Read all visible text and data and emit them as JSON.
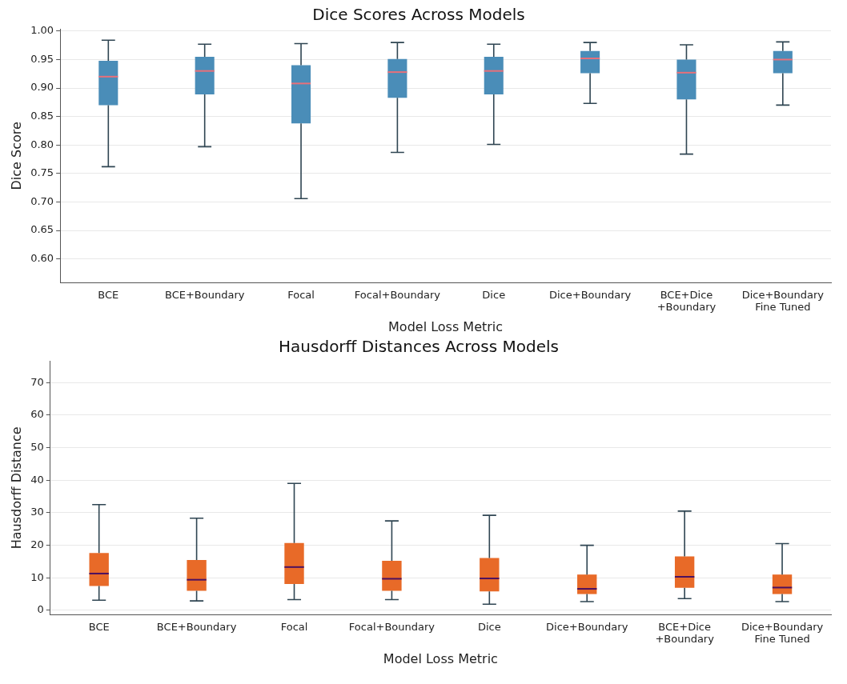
{
  "chart_data": [
    {
      "type": "box",
      "title": "Dice Scores Across Models",
      "xlabel": "Model Loss Metric",
      "ylabel": "Dice Score",
      "categories": [
        "BCE",
        "BCE+Boundary",
        "Focal",
        "Focal+Boundary",
        "Dice",
        "Dice+Boundary",
        "BCE+Dice\n+Boundary",
        "Dice+Boundary\nFine Tuned"
      ],
      "series": [
        {
          "color": "#4a8db8",
          "boxes": [
            {
              "low": 0.762,
              "q1": 0.87,
              "median": 0.92,
              "q3": 0.948,
              "high": 0.984
            },
            {
              "low": 0.797,
              "q1": 0.889,
              "median": 0.93,
              "q3": 0.955,
              "high": 0.977
            },
            {
              "low": 0.706,
              "q1": 0.838,
              "median": 0.908,
              "q3": 0.94,
              "high": 0.978
            },
            {
              "low": 0.787,
              "q1": 0.883,
              "median": 0.928,
              "q3": 0.951,
              "high": 0.98
            },
            {
              "low": 0.801,
              "q1": 0.889,
              "median": 0.93,
              "q3": 0.955,
              "high": 0.977
            },
            {
              "low": 0.873,
              "q1": 0.926,
              "median": 0.952,
              "q3": 0.965,
              "high": 0.98
            },
            {
              "low": 0.784,
              "q1": 0.88,
              "median": 0.927,
              "q3": 0.95,
              "high": 0.976
            },
            {
              "low": 0.87,
              "q1": 0.926,
              "median": 0.95,
              "q3": 0.965,
              "high": 0.981
            }
          ]
        }
      ],
      "ylim": [
        0.558,
        1.004
      ],
      "yticks": [
        {
          "value": 0.6,
          "label": "0.60"
        },
        {
          "value": 0.65,
          "label": "0.65"
        },
        {
          "value": 0.7,
          "label": "0.70"
        },
        {
          "value": 0.75,
          "label": "0.75"
        },
        {
          "value": 0.8,
          "label": "0.80"
        },
        {
          "value": 0.85,
          "label": "0.85"
        },
        {
          "value": 0.9,
          "label": "0.90"
        },
        {
          "value": 0.95,
          "label": "0.95"
        },
        {
          "value": 1.0,
          "label": "1.00"
        }
      ],
      "grid": "y",
      "legend": false
    },
    {
      "type": "box",
      "title": "Hausdorff Distances Across Models",
      "xlabel": "Model Loss Metric",
      "ylabel": "Hausdorff Distance",
      "categories": [
        "BCE",
        "BCE+Boundary",
        "Focal",
        "Focal+Boundary",
        "Dice",
        "Dice+Boundary",
        "BCE+Dice\n+Boundary",
        "Dice+Boundary\nFine Tuned"
      ],
      "series": [
        {
          "color": "#e86a28",
          "boxes": [
            {
              "low": 3.1,
              "q1": 7.5,
              "median": 11.3,
              "q3": 17.6,
              "high": 32.5
            },
            {
              "low": 2.9,
              "q1": 6.0,
              "median": 9.4,
              "q3": 15.5,
              "high": 28.3
            },
            {
              "low": 3.3,
              "q1": 8.1,
              "median": 13.3,
              "q3": 20.7,
              "high": 39.0
            },
            {
              "low": 3.3,
              "q1": 6.0,
              "median": 9.7,
              "q3": 15.2,
              "high": 27.5
            },
            {
              "low": 1.9,
              "q1": 5.8,
              "median": 9.8,
              "q3": 16.1,
              "high": 29.2
            },
            {
              "low": 2.7,
              "q1": 5.0,
              "median": 6.6,
              "q3": 11.0,
              "high": 20.0
            },
            {
              "low": 3.6,
              "q1": 6.9,
              "median": 10.3,
              "q3": 16.6,
              "high": 30.5
            },
            {
              "low": 2.7,
              "q1": 5.0,
              "median": 7.0,
              "q3": 11.0,
              "high": 20.5
            }
          ]
        }
      ],
      "ylim": [
        -1.4,
        76.7
      ],
      "yticks": [
        0,
        10,
        20,
        30,
        40,
        50,
        60,
        70
      ],
      "grid": "y",
      "legend": false
    }
  ]
}
